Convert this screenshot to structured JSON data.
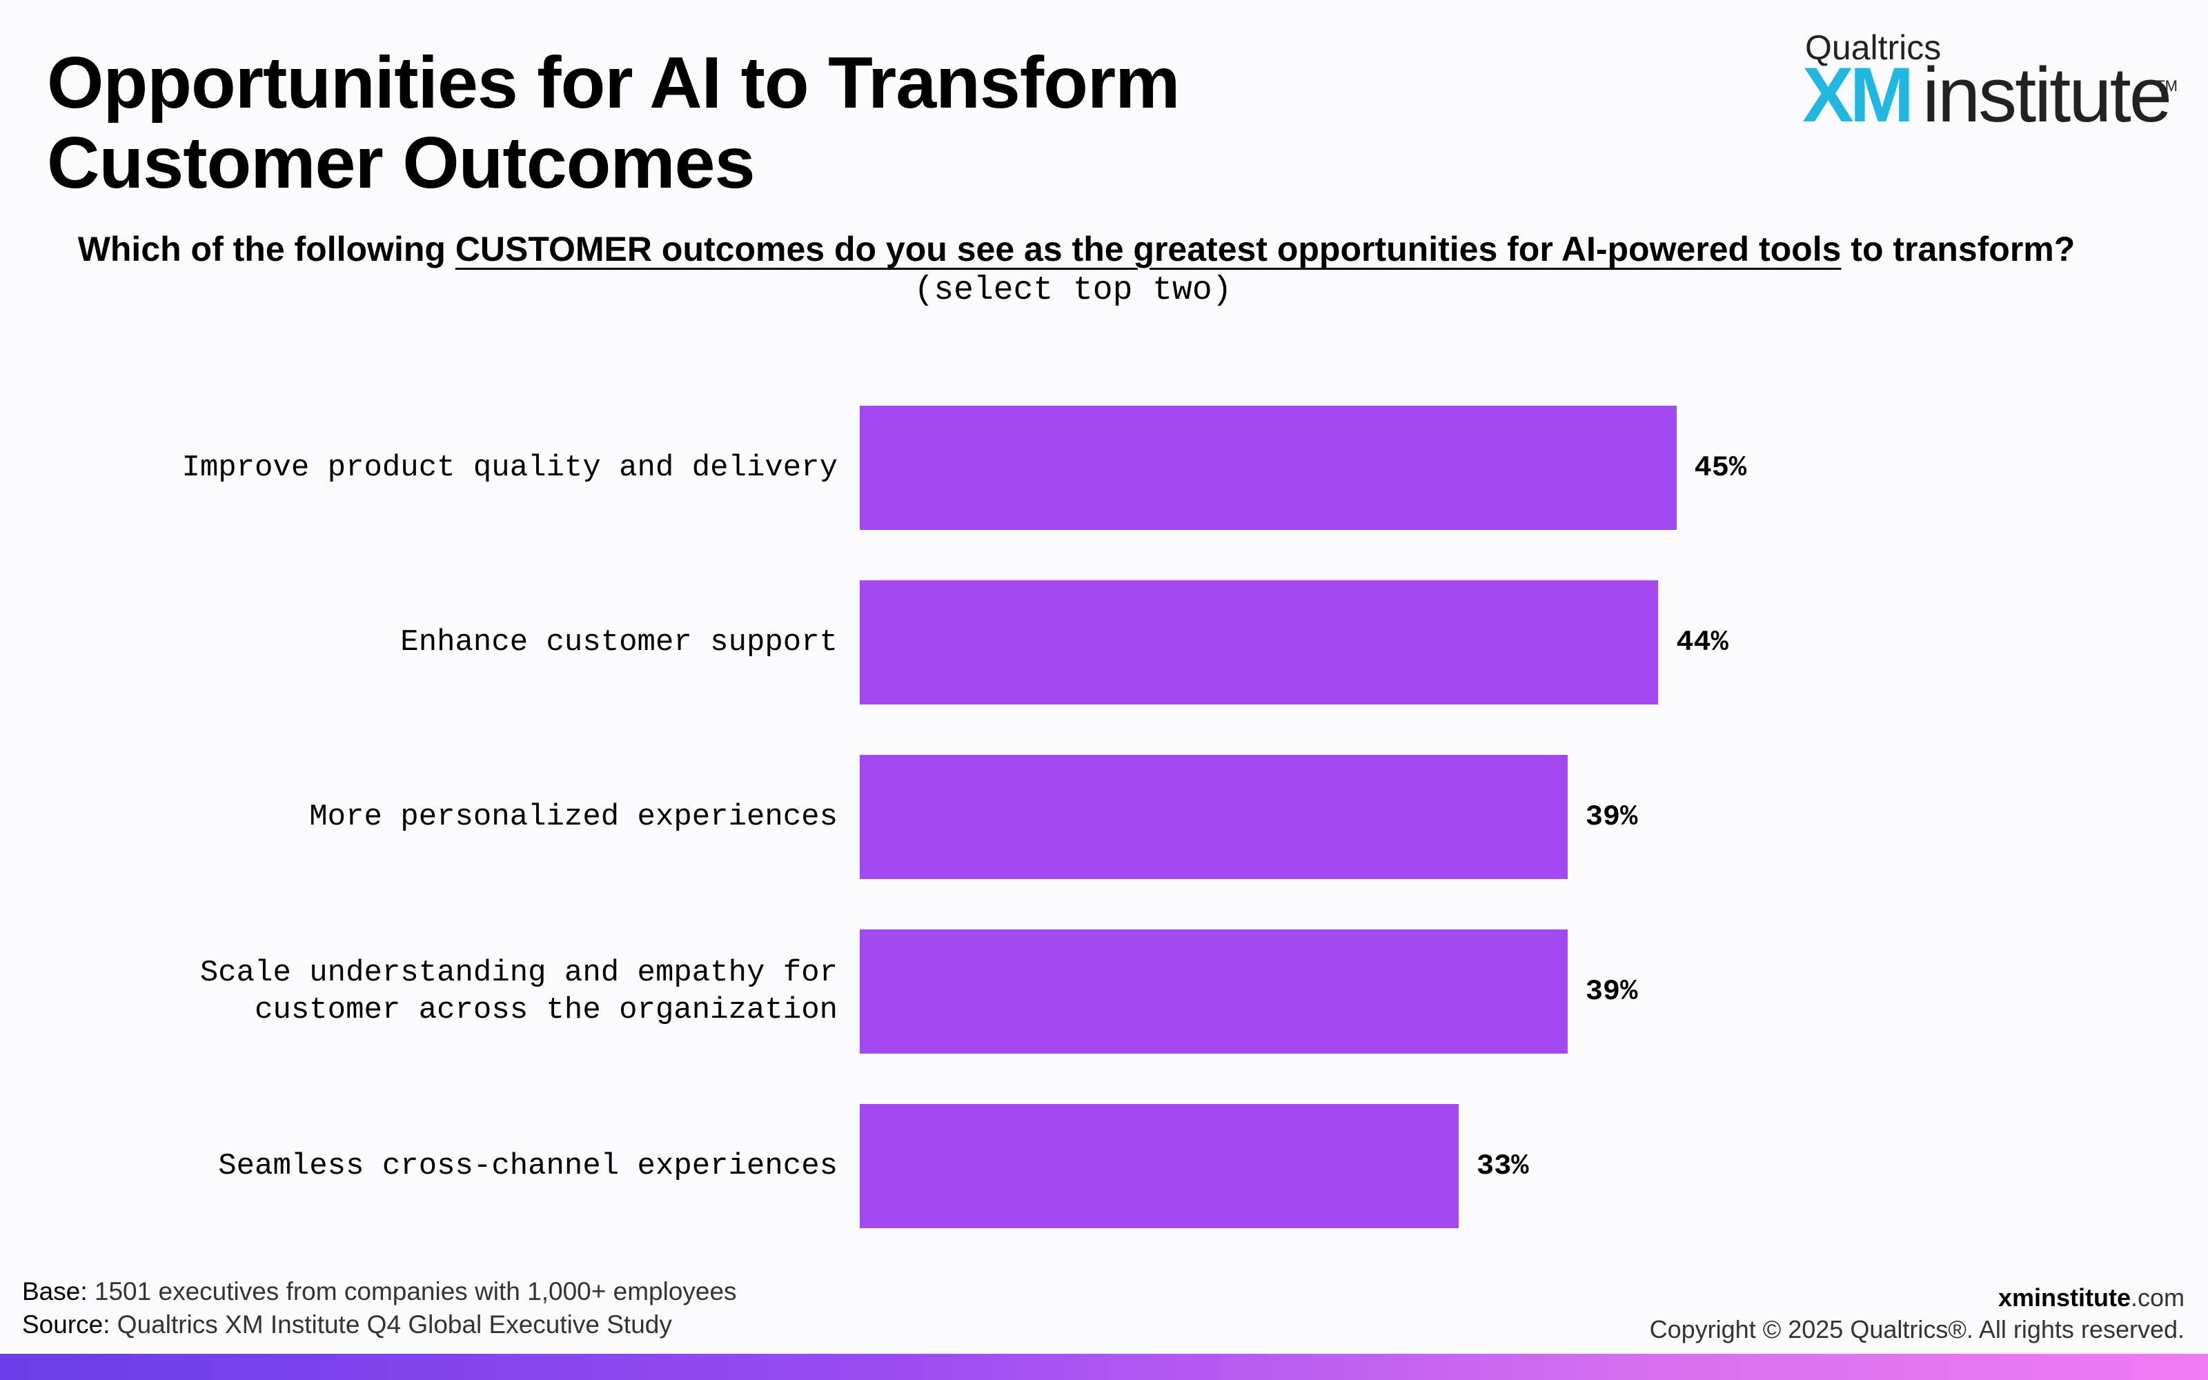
{
  "title": {
    "line1": "Opportunities for AI to Transform",
    "line2": "Customer Outcomes"
  },
  "logo": {
    "brand": "Qualtrics",
    "xm": "XM",
    "institute": "institute",
    "tm": "TM"
  },
  "question": {
    "prefix": "Which of the following ",
    "emphasis": "CUSTOMER outcomes do you see as the greatest opportunities for AI-powered tools",
    "suffix": " to transform?",
    "instruction": "(select top two)"
  },
  "chart_data": {
    "type": "bar",
    "orientation": "horizontal",
    "categories": [
      "Improve product quality and delivery",
      "Enhance customer support",
      "More personalized experiences",
      "Scale understanding and empathy for\ncustomer across the organization",
      "Seamless cross-channel experiences"
    ],
    "values": [
      45,
      44,
      39,
      39,
      33
    ],
    "value_labels": [
      "45%",
      "44%",
      "39%",
      "39%",
      "33%"
    ],
    "bar_color": "#a349f2",
    "xlim": [
      0,
      60
    ],
    "grid": false
  },
  "footer": {
    "base_key": "Base:",
    "base_text": " 1501 executives from companies with 1,000+ employees",
    "source_key": "Source:",
    "source_text": " Qualtrics XM Institute Q4 Global Executive Study",
    "domain_bold": "xminstitute",
    "domain_rest": ".com",
    "copyright": "Copyright © 2025 Qualtrics®. All rights reserved."
  },
  "colors": {
    "accent": "#a349f2",
    "logo_xm": "#21b7e0",
    "gradient_start": "#6a3de8",
    "gradient_end": "#f07bf5"
  }
}
